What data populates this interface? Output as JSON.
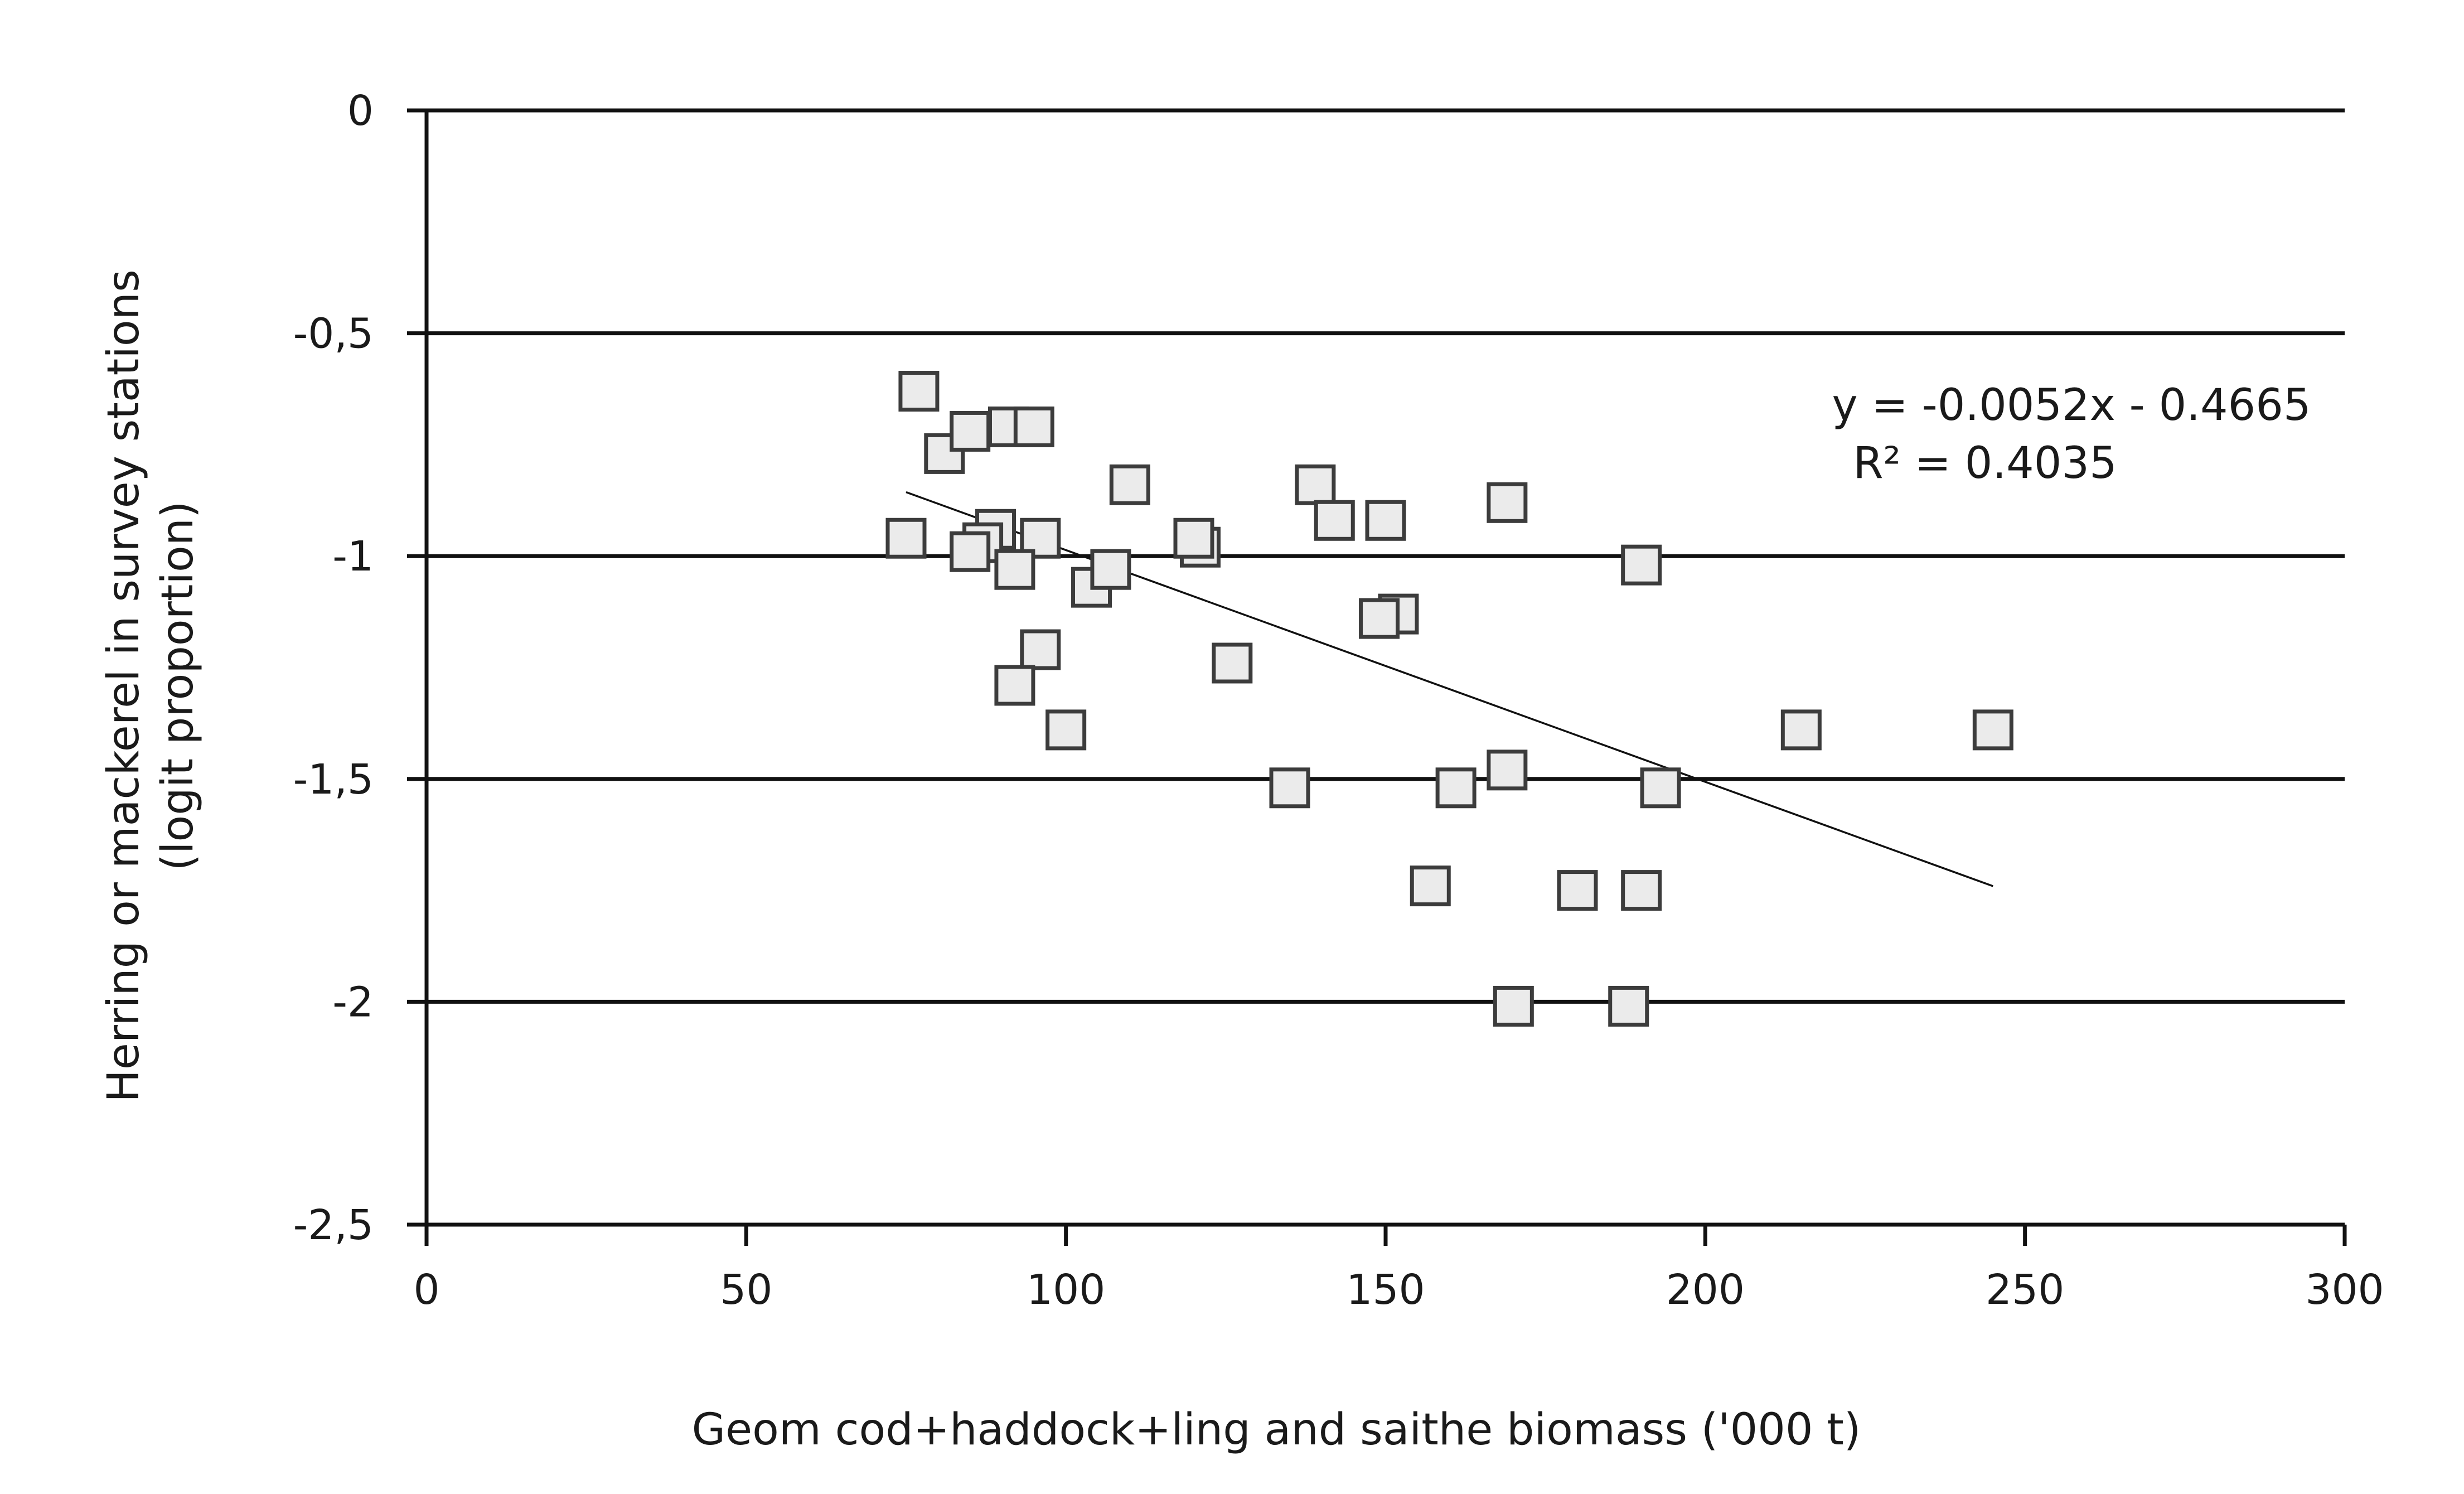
{
  "chart_data": {
    "type": "scatter",
    "title": "",
    "xlabel": "Geom cod+haddock+ling and saithe biomass ('000 t)",
    "ylabel_lines": [
      "Herring or mackerel in survey stations",
      "(logit proportion)"
    ],
    "xlim": [
      0,
      300
    ],
    "ylim": [
      -2.5,
      0
    ],
    "x_ticks": [
      0,
      50,
      100,
      150,
      200,
      250,
      300
    ],
    "x_tick_labels": [
      "0",
      "50",
      "100",
      "150",
      "200",
      "250",
      "300"
    ],
    "y_ticks": [
      0,
      -0.5,
      -1,
      -1.5,
      -2,
      -2.5
    ],
    "y_tick_labels": [
      "0",
      "-0,5",
      "-1",
      "-1,5",
      "-2",
      "-2,5"
    ],
    "grid": "horizontal",
    "legend": "none",
    "series": [
      {
        "points": [
          {
            "x": 77,
            "y": -0.63
          },
          {
            "x": 81,
            "y": -0.77
          },
          {
            "x": 85,
            "y": -0.72
          },
          {
            "x": 91,
            "y": -0.71
          },
          {
            "x": 95,
            "y": -0.71
          },
          {
            "x": 75,
            "y": -0.96
          },
          {
            "x": 89,
            "y": -0.94
          },
          {
            "x": 87,
            "y": -0.97
          },
          {
            "x": 85,
            "y": -0.99
          },
          {
            "x": 96,
            "y": -0.96
          },
          {
            "x": 92,
            "y": -1.03
          },
          {
            "x": 110,
            "y": -0.84
          },
          {
            "x": 104,
            "y": -1.07
          },
          {
            "x": 107,
            "y": -1.03
          },
          {
            "x": 96,
            "y": -1.21
          },
          {
            "x": 92,
            "y": -1.29
          },
          {
            "x": 100,
            "y": -1.39
          },
          {
            "x": 121,
            "y": -0.98
          },
          {
            "x": 120,
            "y": -0.96
          },
          {
            "x": 126,
            "y": -1.24
          },
          {
            "x": 139,
            "y": -0.84
          },
          {
            "x": 142,
            "y": -0.92
          },
          {
            "x": 150,
            "y": -0.92
          },
          {
            "x": 169,
            "y": -0.88
          },
          {
            "x": 152,
            "y": -1.13
          },
          {
            "x": 149,
            "y": -1.14
          },
          {
            "x": 135,
            "y": -1.52
          },
          {
            "x": 157,
            "y": -1.74
          },
          {
            "x": 161,
            "y": -1.52
          },
          {
            "x": 169,
            "y": -1.48
          },
          {
            "x": 190,
            "y": -1.02
          },
          {
            "x": 193,
            "y": -1.52
          },
          {
            "x": 180,
            "y": -1.75
          },
          {
            "x": 190,
            "y": -1.75
          },
          {
            "x": 170,
            "y": -2.01
          },
          {
            "x": 188,
            "y": -2.01
          },
          {
            "x": 215,
            "y": -1.39
          },
          {
            "x": 245,
            "y": -1.39
          }
        ]
      }
    ],
    "trendline": {
      "slope": -0.0052,
      "intercept": -0.4665,
      "x_start": 75,
      "x_end": 245
    },
    "annotations": [
      "y = -0.0052x - 0.4665",
      "R² = 0.4035"
    ]
  }
}
